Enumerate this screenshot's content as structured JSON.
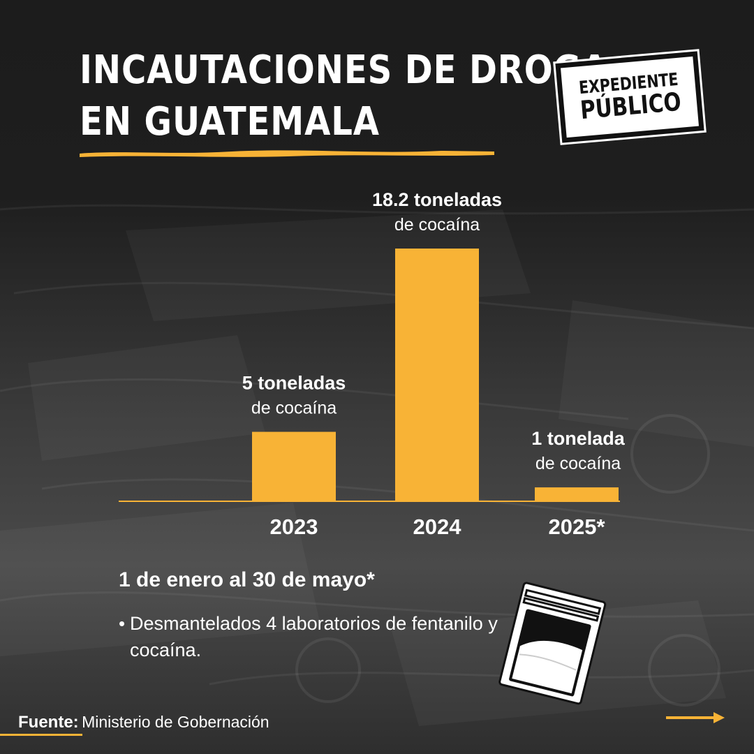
{
  "header": {
    "title_line1": "INCAUTACIONES DE DROGA",
    "title_line2": "EN GUATEMALA"
  },
  "logo": {
    "line1": "EXPEDIENTE",
    "line2": "PÚBLICO"
  },
  "chart_data": {
    "type": "bar",
    "categories": [
      "2023",
      "2024",
      "2025*"
    ],
    "values": [
      5,
      18.2,
      1
    ],
    "unit": "toneladas de cocaína",
    "data_labels": [
      {
        "line1": "5 toneladas",
        "line2": "de cocaína"
      },
      {
        "line1": "18.2 toneladas",
        "line2": "de cocaína"
      },
      {
        "line1": "1 tonelada",
        "line2": "de cocaína"
      }
    ],
    "title": "",
    "xlabel": "",
    "ylabel": "",
    "ylim": [
      0,
      18.2
    ],
    "grid": false,
    "legend": "none"
  },
  "note": {
    "title": "1 de enero al 30 de mayo*",
    "items": [
      "Desmantelados 4 laboratorios de fentanilo y cocaína."
    ]
  },
  "source": {
    "label": "Fuente:",
    "text": "Ministerio de Gobernación"
  },
  "colors": {
    "accent": "#f8b336",
    "background": "#1e1e1e",
    "text": "#ffffff"
  },
  "icons": [
    "plastic-bag-icon",
    "arrow-right-icon"
  ]
}
